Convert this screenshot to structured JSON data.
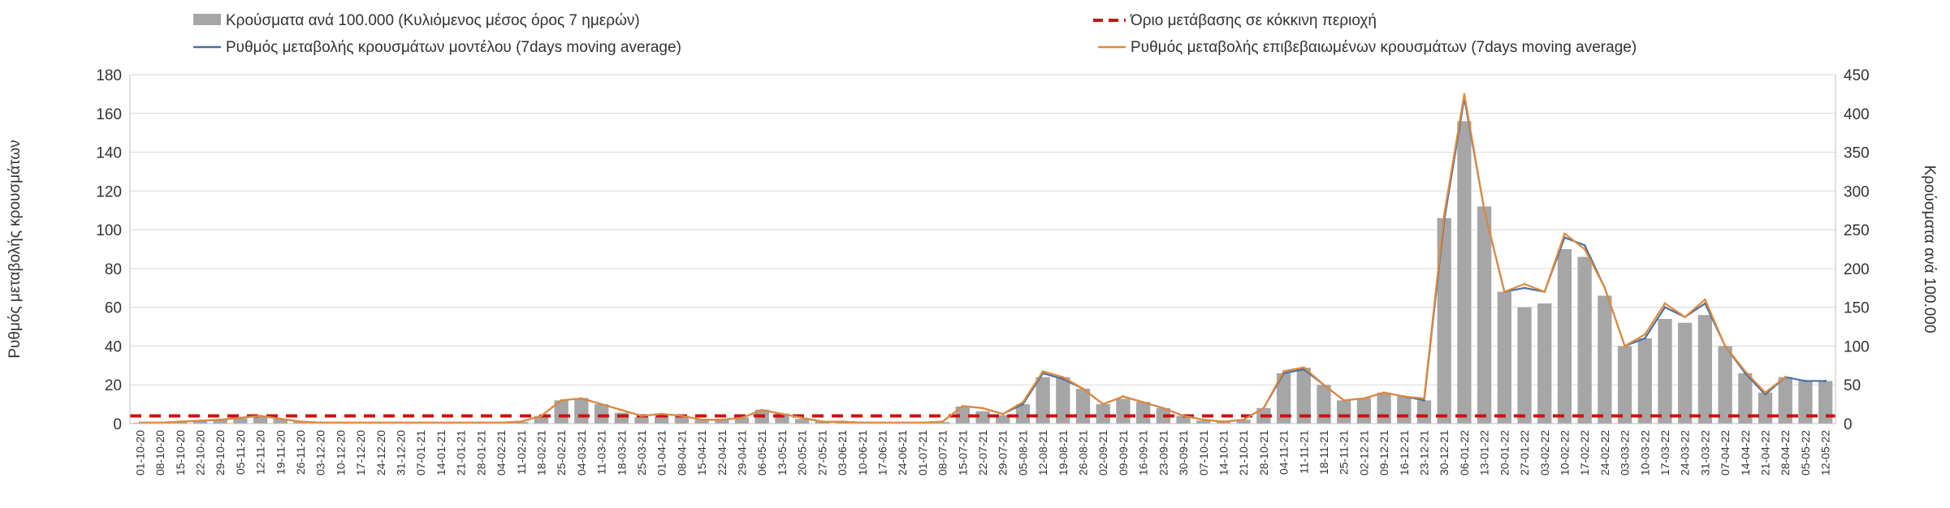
{
  "chart_data": {
    "type": "bar+line",
    "left_axis": {
      "label": "Ρυθμός μεταβολής κρουσμάτων",
      "min": 0,
      "max": 180,
      "step": 20,
      "ticks": [
        "0",
        "20",
        "40",
        "60",
        "80",
        "100",
        "120",
        "140",
        "160",
        "180"
      ]
    },
    "right_axis": {
      "label": "Κρούσματα ανά 100.000",
      "min": 0,
      "max": 450,
      "step": 50,
      "ticks": [
        "0",
        "50",
        "100",
        "150",
        "200",
        "250",
        "300",
        "350",
        "400",
        "450"
      ]
    },
    "x_labels": [
      "01-10-20",
      "08-10-20",
      "15-10-20",
      "22-10-20",
      "29-10-20",
      "05-11-20",
      "12-11-20",
      "19-11-20",
      "26-11-20",
      "03-12-20",
      "10-12-20",
      "17-12-20",
      "24-12-20",
      "31-12-20",
      "07-01-21",
      "14-01-21",
      "21-01-21",
      "28-01-21",
      "04-02-21",
      "11-02-21",
      "18-02-21",
      "25-02-21",
      "04-03-21",
      "11-03-21",
      "18-03-21",
      "25-03-21",
      "01-04-21",
      "08-04-21",
      "15-04-21",
      "22-04-21",
      "29-04-21",
      "06-05-21",
      "13-05-21",
      "20-05-21",
      "27-05-21",
      "03-06-21",
      "10-06-21",
      "17-06-21",
      "24-06-21",
      "01-07-21",
      "08-07-21",
      "15-07-21",
      "22-07-21",
      "29-07-21",
      "05-08-21",
      "12-08-21",
      "19-08-21",
      "26-08-21",
      "02-09-21",
      "09-09-21",
      "16-09-21",
      "23-09-21",
      "30-09-21",
      "07-10-21",
      "14-10-21",
      "21-10-21",
      "28-10-21",
      "04-11-21",
      "11-11-21",
      "18-11-21",
      "25-11-21",
      "02-12-21",
      "09-12-21",
      "16-12-21",
      "23-12-21",
      "30-12-21",
      "06-01-22",
      "13-01-22",
      "20-01-22",
      "27-01-22",
      "03-02-22",
      "10-02-22",
      "17-02-22",
      "24-02-22",
      "03-03-22",
      "10-03-22",
      "17-03-22",
      "24-03-22",
      "31-03-22",
      "07-04-22",
      "14-04-22",
      "21-04-22",
      "28-04-22",
      "05-05-22",
      "12-05-22"
    ],
    "threshold": {
      "name": "Όριο μετάβασης σε κόκκινη περιοχή",
      "value": 4,
      "color": "#cc1111"
    },
    "series": [
      {
        "name": "Κρούσματα ανά 100.000 (Κυλιόμενος μέσος όρος 7 ημερών)",
        "type": "bar",
        "axis": "right",
        "color": "#a6a6a6",
        "values": [
          1,
          1,
          2,
          3,
          5,
          7,
          9,
          6,
          3,
          2,
          1,
          1,
          1,
          1,
          1,
          1,
          1,
          1,
          1,
          2,
          10,
          30,
          33,
          25,
          14,
          8,
          12,
          10,
          5,
          6,
          8,
          18,
          13,
          6,
          3,
          2,
          1,
          1,
          1,
          1,
          2,
          22,
          16,
          11,
          25,
          60,
          60,
          45,
          25,
          32,
          28,
          20,
          10,
          4,
          3,
          5,
          20,
          65,
          72,
          50,
          30,
          33,
          40,
          35,
          30,
          265,
          390,
          280,
          170,
          150,
          155,
          225,
          215,
          165,
          100,
          110,
          135,
          130,
          140,
          100,
          65,
          40,
          60,
          55,
          55
        ]
      },
      {
        "name": "Ρυθμός μεταβολής κρουσμάτων μοντέλου (7days moving average)",
        "type": "line",
        "axis": "left",
        "color": "#4a6fa5",
        "values": [
          0.5,
          0.5,
          1,
          1.5,
          2,
          3,
          4,
          2.5,
          1,
          0.5,
          0.5,
          0.5,
          0.5,
          0.5,
          0.5,
          0.5,
          0.5,
          0.5,
          0.5,
          1,
          4,
          12,
          13,
          10,
          7,
          4,
          5,
          4,
          2,
          2,
          3,
          7,
          5,
          3,
          1,
          1,
          0.5,
          0.5,
          0.5,
          0.5,
          1,
          9,
          8,
          5,
          10,
          26,
          23,
          18,
          10,
          14,
          11,
          8,
          4,
          2,
          1,
          2,
          8,
          26,
          28,
          20,
          12,
          13,
          16,
          14,
          12,
          105,
          168,
          110,
          68,
          70,
          68,
          96,
          92,
          70,
          40,
          44,
          60,
          55,
          62,
          40,
          26,
          15,
          24,
          22,
          22
        ]
      },
      {
        "name": "Ρυθμός μεταβολής επιβεβαιωμένων κρουσμάτων (7days moving average)",
        "type": "line",
        "axis": "left",
        "color": "#e08a3c",
        "values": [
          0.5,
          0.5,
          1,
          1.5,
          2,
          3,
          4,
          2.5,
          1,
          0.5,
          0.5,
          0.5,
          0.5,
          0.5,
          0.5,
          0.5,
          0.5,
          0.5,
          0.5,
          1,
          4,
          12,
          13,
          10,
          7,
          4,
          5,
          4,
          2,
          2,
          3,
          7,
          5,
          3,
          1,
          1,
          0.5,
          0.5,
          0.5,
          0.5,
          1,
          9,
          8,
          5,
          11,
          27,
          24,
          18,
          10,
          14,
          11,
          8,
          4,
          2,
          1,
          2,
          8,
          27,
          29,
          20,
          12,
          13,
          16,
          14,
          13,
          108,
          170,
          110,
          68,
          72,
          68,
          98,
          90,
          70,
          40,
          46,
          62,
          55,
          64,
          40,
          27,
          16,
          24,
          null,
          null
        ]
      }
    ]
  }
}
